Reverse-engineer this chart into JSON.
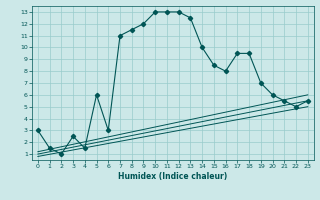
{
  "bg_color": "#cce8e8",
  "grid_color": "#99cccc",
  "line_color": "#005555",
  "main_curve_x": [
    0,
    1,
    2,
    3,
    4,
    5,
    6,
    7,
    8,
    9,
    10,
    11,
    12,
    13,
    14,
    15,
    16,
    17,
    18,
    19,
    20,
    21,
    22,
    23
  ],
  "main_curve_y": [
    3.0,
    1.5,
    1.0,
    2.5,
    1.5,
    6.0,
    3.0,
    11.0,
    11.5,
    12.0,
    13.0,
    13.0,
    13.0,
    12.5,
    10.0,
    8.5,
    8.0,
    9.5,
    9.5,
    7.0,
    6.0,
    5.5,
    5.0,
    5.5
  ],
  "line2_x": [
    0,
    23
  ],
  "line2_y": [
    1.2,
    6.0
  ],
  "line3_x": [
    0,
    23
  ],
  "line3_y": [
    1.0,
    5.5
  ],
  "line4_x": [
    0,
    23
  ],
  "line4_y": [
    0.8,
    5.0
  ],
  "xlim": [
    -0.5,
    23.5
  ],
  "ylim": [
    0.5,
    13.5
  ],
  "xticks": [
    0,
    1,
    2,
    3,
    4,
    5,
    6,
    7,
    8,
    9,
    10,
    11,
    12,
    13,
    14,
    15,
    16,
    17,
    18,
    19,
    20,
    21,
    22,
    23
  ],
  "yticks": [
    1,
    2,
    3,
    4,
    5,
    6,
    7,
    8,
    9,
    10,
    11,
    12,
    13
  ],
  "xlabel": "Humidex (Indice chaleur)",
  "xlabel_fontsize": 5.5,
  "tick_fontsize": 4.5,
  "lw_main": 0.8,
  "lw_diag": 0.7,
  "marker_size": 2.2
}
